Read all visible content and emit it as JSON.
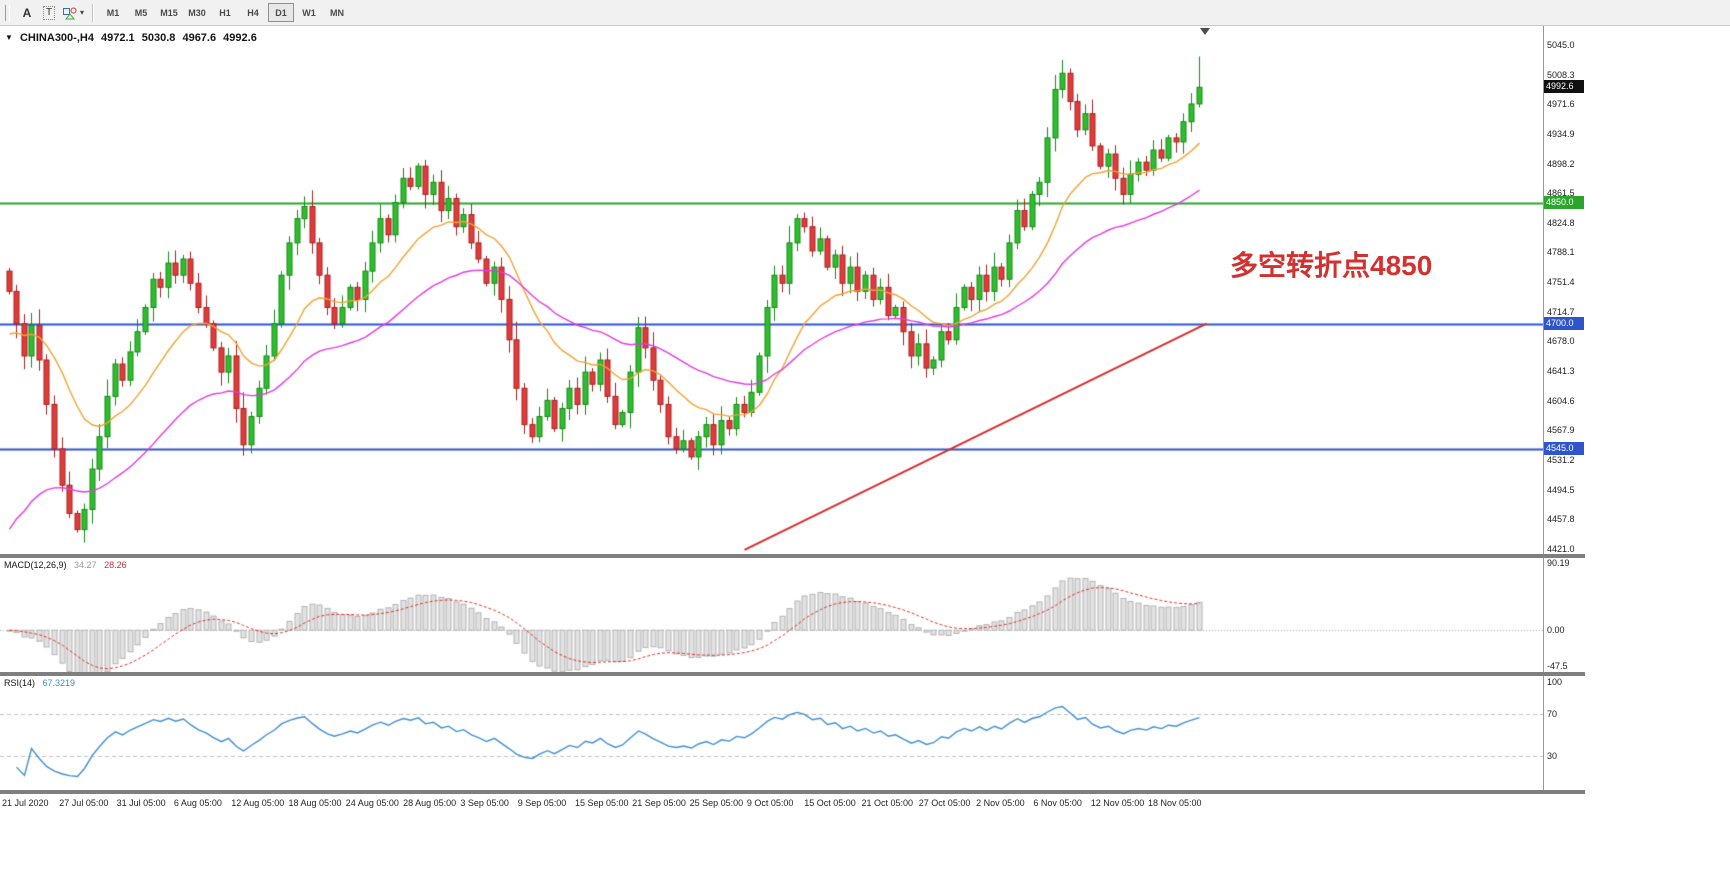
{
  "toolbar": {
    "tools": [
      {
        "label": "A",
        "name": "text-tool"
      },
      {
        "label": "T",
        "name": "text-label-tool"
      },
      {
        "label": "",
        "name": "arrows-tool"
      }
    ],
    "caret": "▾",
    "timeframes": [
      "M1",
      "M5",
      "M15",
      "M30",
      "H1",
      "H4",
      "D1",
      "W1",
      "MN"
    ],
    "active_timeframe": "D1"
  },
  "chart": {
    "marker": "▼",
    "symbol_tf": "CHINA300-,H4",
    "ohlc": {
      "open": "4972.1",
      "high": "5030.8",
      "low": "4967.6",
      "close": "4992.6"
    },
    "current_price": "4992.6",
    "current_price_bg": "#111111",
    "annotation": {
      "text": "多空转折点4850",
      "color": "#d33030"
    },
    "levels": [
      {
        "value": 4850.0,
        "color": "#2ca52c"
      },
      {
        "value": 4700.0,
        "color": "#2f55cc"
      },
      {
        "value": 4545.0,
        "color": "#2f55cc"
      }
    ],
    "axis": {
      "max": 5045.0,
      "min": 4421.0,
      "ticks": [
        5045.0,
        5008.3,
        4971.6,
        4934.9,
        4898.2,
        4861.5,
        4824.8,
        4788.1,
        4751.4,
        4714.7,
        4678.0,
        4641.3,
        4604.6,
        4567.9,
        4531.2,
        4494.5,
        4457.8,
        4421.0
      ]
    }
  },
  "chart_data": {
    "type": "candlestick",
    "symbol": "CHINA300-",
    "timeframe": "H4",
    "first_open": 4765,
    "closes": [
      4740,
      4700,
      4660,
      4698,
      4655,
      4600,
      4545,
      4500,
      4465,
      4445,
      4470,
      4520,
      4560,
      4610,
      4650,
      4630,
      4665,
      4690,
      4720,
      4755,
      4745,
      4775,
      4760,
      4780,
      4750,
      4720,
      4700,
      4670,
      4640,
      4660,
      4595,
      4550,
      4585,
      4620,
      4660,
      4700,
      4760,
      4800,
      4830,
      4845,
      4800,
      4760,
      4720,
      4700,
      4720,
      4745,
      4730,
      4765,
      4800,
      4830,
      4810,
      4850,
      4880,
      4870,
      4895,
      4860,
      4875,
      4840,
      4855,
      4820,
      4835,
      4800,
      4780,
      4750,
      4770,
      4730,
      4680,
      4620,
      4575,
      4560,
      4585,
      4605,
      4570,
      4595,
      4620,
      4600,
      4640,
      4625,
      4655,
      4610,
      4575,
      4590,
      4640,
      4695,
      4670,
      4630,
      4600,
      4560,
      4545,
      4555,
      4535,
      4560,
      4575,
      4550,
      4580,
      4570,
      4600,
      4590,
      4615,
      4660,
      4720,
      4760,
      4750,
      4800,
      4830,
      4820,
      4790,
      4805,
      4770,
      4785,
      4750,
      4770,
      4740,
      4760,
      4730,
      4745,
      4710,
      4720,
      4690,
      4660,
      4675,
      4645,
      4655,
      4690,
      4680,
      4720,
      4745,
      4730,
      4760,
      4740,
      4770,
      4755,
      4800,
      4840,
      4820,
      4860,
      4875,
      4930,
      4990,
      5010,
      4975,
      4940,
      4960,
      4920,
      4895,
      4910,
      4880,
      4860,
      4885,
      4900,
      4890,
      4915,
      4905,
      4930,
      4925,
      4950,
      4972
    ],
    "last_bar": {
      "open": 4972.1,
      "high": 5030.8,
      "low": 4967.6,
      "close": 4992.6
    },
    "colors": {
      "up": "#2fbe2f",
      "up_border": "#168a16",
      "down": "#e23b3b",
      "down_border": "#a62222"
    },
    "ma_fast": {
      "color": "#f2a233",
      "alpha": 0.12,
      "seed": 4680
    },
    "ma_slow": {
      "color": "#e23ae2",
      "alpha": 0.05,
      "seed": 4430
    },
    "trendline": {
      "color": "#d92b2b",
      "from_bar": 97,
      "from_price": 4420,
      "to_bar": 158,
      "to_price": 4700
    }
  },
  "macd": {
    "label": "MACD(12,26,9)",
    "value_hist": "34.27",
    "value_signal": "28.26",
    "params": {
      "fast": 12,
      "slow": 26,
      "signal": 9
    },
    "range": [
      -55,
      95
    ],
    "ticks": [
      {
        "text": "90.19",
        "v": 90.19
      },
      {
        "text": "0.00",
        "v": 0
      },
      {
        "text": "-47.5",
        "v": -47.5
      }
    ],
    "hist_fill": "#e2e2e2",
    "hist_border": "#b4b4b4",
    "signal_color": "#e03030"
  },
  "rsi": {
    "label": "RSI(14)",
    "value": "67.3219",
    "period": 14,
    "line_color": "#3f8fd2",
    "levels": [
      70,
      30
    ],
    "ticks": [
      {
        "text": "100",
        "v": 100
      },
      {
        "text": "70",
        "v": 70
      },
      {
        "text": "30",
        "v": 30
      }
    ]
  },
  "time_axis": {
    "labels": [
      "21 Jul 2020",
      "27 Jul 05:00",
      "31 Jul 05:00",
      "6 Aug 05:00",
      "12 Aug 05:00",
      "18 Aug 05:00",
      "24 Aug 05:00",
      "28 Aug 05:00",
      "3 Sep 05:00",
      "9 Sep 05:00",
      "15 Sep 05:00",
      "21 Sep 05:00",
      "25 Sep 05:00",
      "9 Oct 05:00",
      "15 Oct 05:00",
      "21 Oct 05:00",
      "27 Oct 05:00",
      "2 Nov 05:00",
      "6 Nov 05:00",
      "12 Nov 05:00",
      "18 Nov 05:00"
    ]
  }
}
